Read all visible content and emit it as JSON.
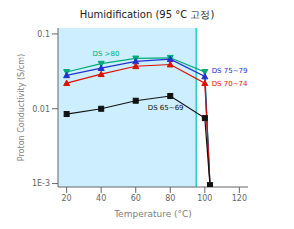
{
  "chart_data": {
    "type": "line",
    "title": "Humidification (95 °C 고정)",
    "xlabel": "Temperature (°C)",
    "ylabel": "Proton Conductivity (S/cm)",
    "log": "y",
    "grid": false,
    "x": [
      20,
      40,
      60,
      80,
      100,
      103
    ],
    "xlim": [
      15,
      125
    ],
    "xticks": [
      20,
      40,
      60,
      80,
      100,
      120
    ],
    "ylim": [
      0.0009,
      0.12
    ],
    "yticks": [
      {
        "value": 0.001,
        "label": "1E-3"
      },
      0.01,
      0.1
    ],
    "series": [
      {
        "name": "DS >80",
        "color": "#00aa77",
        "marker": "triangle-down",
        "values": [
          0.031,
          0.04,
          0.047,
          0.048,
          0.031,
          0.00095
        ]
      },
      {
        "name": "DS 75~79",
        "color": "#2233cc",
        "marker": "triangle",
        "values": [
          0.028,
          0.035,
          0.043,
          0.046,
          0.027,
          0.00095
        ]
      },
      {
        "name": "DS 70~74",
        "color": "#dd1100",
        "marker": "triangle",
        "values": [
          0.022,
          0.029,
          0.037,
          0.039,
          0.022,
          0.00095
        ]
      },
      {
        "name": "DS 65~69",
        "color": "#111111",
        "marker": "square",
        "values": [
          0.0085,
          0.01,
          0.0128,
          0.0148,
          0.0075,
          0.00095
        ]
      }
    ],
    "annotations": [
      {
        "text": "DS >80",
        "x": 35,
        "y": 0.054,
        "color": "#00aa77"
      },
      {
        "text": "DS 65~69",
        "x": 67,
        "y": 0.0105,
        "color": "#111111"
      },
      {
        "text": "DS 75~79",
        "x": 104,
        "y": 0.032,
        "color": "#2233cc"
      },
      {
        "text": "DS 70~74",
        "x": 104,
        "y": 0.022,
        "color": "#dd1100"
      }
    ],
    "regions": [
      {
        "x": [
          15,
          95
        ],
        "color": "#cceeff"
      }
    ],
    "vline": {
      "x": 95,
      "color": "#00cccc"
    }
  }
}
